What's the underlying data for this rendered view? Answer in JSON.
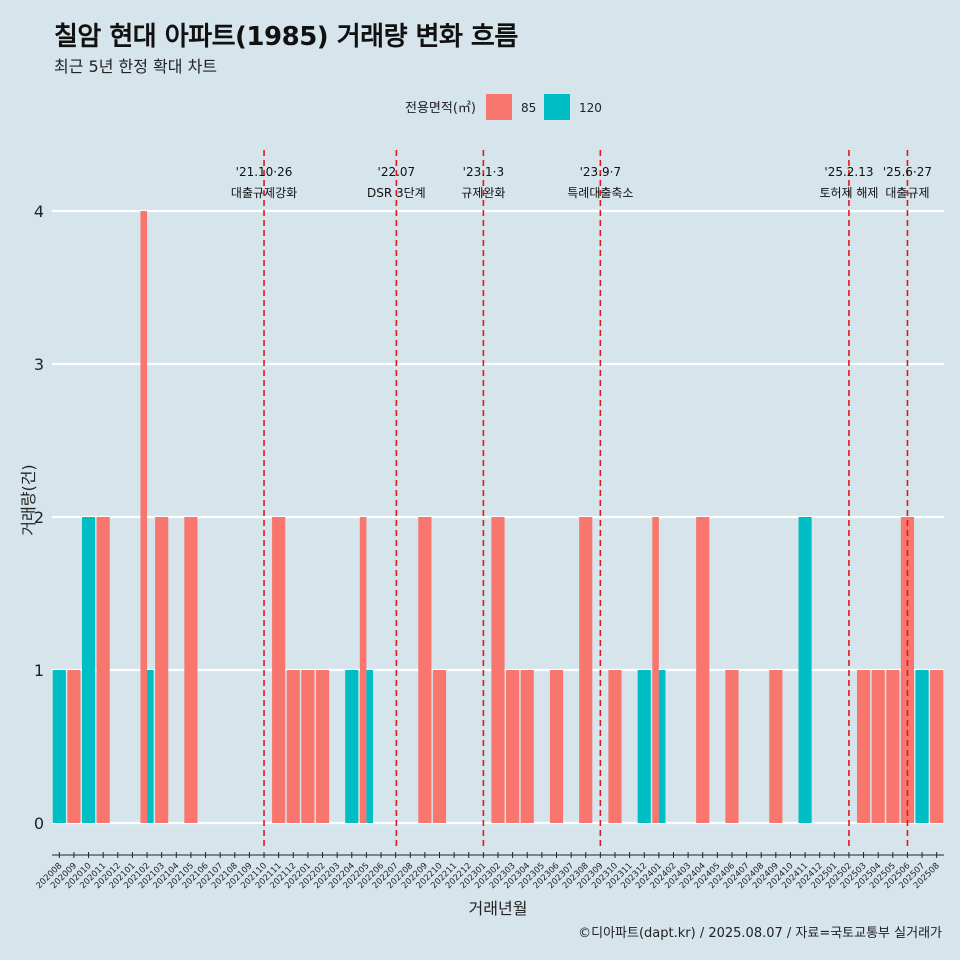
{
  "title": "칠암 현대 아파트(1985) 거래량 변화 흐름",
  "subtitle": "최근 5년 한정 확대 차트",
  "caption": "©디아파트(dapt.kr) / 2025.08.07 / 자료=국토교통부 실거래가",
  "colors": {
    "background": "#d6e4eb",
    "series_85": "#f8766d",
    "series_120": "#00bfc4",
    "event_line": "#e8141c",
    "grid": "#ffffff"
  },
  "chart_data": {
    "type": "bar",
    "xlabel": "거래년월",
    "ylabel": "거래량(건)",
    "ylim": [
      0,
      4
    ],
    "yticks": [
      0,
      1,
      2,
      3,
      4
    ],
    "legend": {
      "title": "전용면적(㎡)",
      "position": "top"
    },
    "categories": [
      "202008",
      "202009",
      "202010",
      "202011",
      "202012",
      "202101",
      "202102",
      "202103",
      "202104",
      "202105",
      "202106",
      "202107",
      "202108",
      "202109",
      "202110",
      "202111",
      "202112",
      "202201",
      "202202",
      "202203",
      "202204",
      "202205",
      "202206",
      "202207",
      "202208",
      "202209",
      "202210",
      "202211",
      "202212",
      "202301",
      "202302",
      "202303",
      "202304",
      "202305",
      "202306",
      "202307",
      "202308",
      "202309",
      "202310",
      "202311",
      "202312",
      "202401",
      "202402",
      "202403",
      "202404",
      "202405",
      "202406",
      "202407",
      "202408",
      "202409",
      "202410",
      "202411",
      "202412",
      "202501",
      "202502",
      "202503",
      "202504",
      "202505",
      "202506",
      "202507",
      "202508"
    ],
    "series": [
      {
        "name": "85",
        "values": [
          0,
          1,
          0,
          2,
          0,
          0,
          4,
          2,
          0,
          2,
          0,
          0,
          0,
          0,
          0,
          2,
          1,
          1,
          1,
          0,
          0,
          2,
          0,
          0,
          0,
          2,
          1,
          0,
          0,
          0,
          2,
          1,
          1,
          0,
          1,
          0,
          2,
          0,
          1,
          0,
          0,
          2,
          0,
          0,
          2,
          0,
          1,
          0,
          0,
          1,
          0,
          0,
          0,
          0,
          0,
          1,
          1,
          1,
          2,
          0,
          1
        ]
      },
      {
        "name": "120",
        "values": [
          1,
          0,
          2,
          0,
          0,
          0,
          1,
          0,
          0,
          0,
          0,
          0,
          0,
          0,
          0,
          0,
          0,
          0,
          0,
          0,
          1,
          1,
          0,
          0,
          0,
          0,
          0,
          0,
          0,
          0,
          0,
          0,
          0,
          0,
          0,
          0,
          0,
          0,
          0,
          0,
          1,
          1,
          0,
          0,
          0,
          0,
          0,
          0,
          0,
          0,
          0,
          2,
          0,
          0,
          0,
          0,
          0,
          0,
          0,
          1,
          0
        ]
      }
    ],
    "events": [
      {
        "pos": 14.5,
        "date": "'21.10·26",
        "label": "대출규제강화"
      },
      {
        "pos": 23.55,
        "date": "'22.07",
        "label": "DSR 3단계"
      },
      {
        "pos": 29.5,
        "date": "'23.1·3",
        "label": "규제완화"
      },
      {
        "pos": 37.5,
        "date": "'23.9·7",
        "label": "특례대출축소"
      },
      {
        "pos": 54.5,
        "date": "'25.2.13",
        "label": "토허제 해제"
      },
      {
        "pos": 58.5,
        "date": "'25.6·27",
        "label": "대출규제"
      }
    ]
  }
}
